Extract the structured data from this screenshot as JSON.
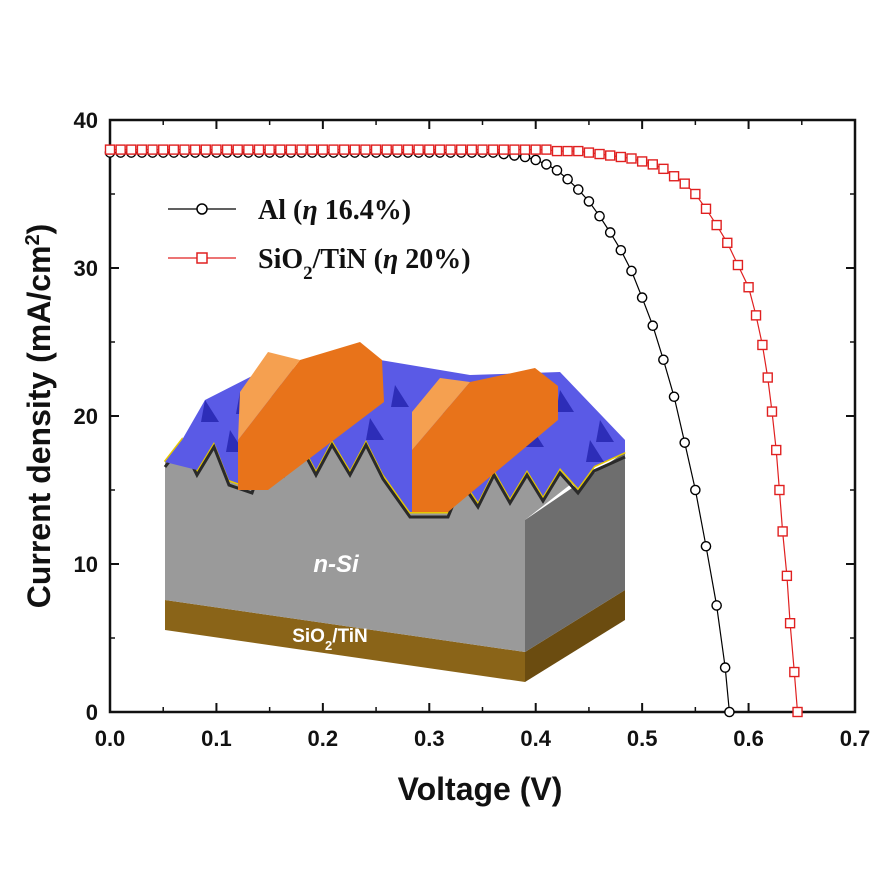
{
  "colors": {
    "series1": "#000000",
    "series2": "#e02020",
    "silicon_front": "#9a9a9a",
    "silicon_side": "#6e6e6e",
    "texture": "#5a5ae6",
    "contact": "#e8731a",
    "back_layer": "#8a6418",
    "passivation": "#e6c800"
  },
  "chart_data": {
    "type": "scatter",
    "xlabel": "Voltage (V)",
    "ylabel": "Current density (mA/cm²)",
    "xlim": [
      0.0,
      0.7
    ],
    "ylim": [
      0,
      40
    ],
    "xticks": [
      "0.0",
      "0.1",
      "0.2",
      "0.3",
      "0.4",
      "0.5",
      "0.6",
      "0.7"
    ],
    "yticks": [
      "0",
      "10",
      "20",
      "30",
      "40"
    ],
    "legend_position": "upper-left",
    "series": [
      {
        "name": "Al (η 16.4%)",
        "label_main": "Al (",
        "label_eta": "η",
        "label_value": " 16.4%)",
        "marker": "circle",
        "color": "#000000",
        "points": [
          [
            0.0,
            37.8
          ],
          [
            0.01,
            37.8
          ],
          [
            0.02,
            37.8
          ],
          [
            0.03,
            37.8
          ],
          [
            0.04,
            37.8
          ],
          [
            0.05,
            37.8
          ],
          [
            0.06,
            37.8
          ],
          [
            0.07,
            37.8
          ],
          [
            0.08,
            37.8
          ],
          [
            0.09,
            37.8
          ],
          [
            0.1,
            37.8
          ],
          [
            0.11,
            37.8
          ],
          [
            0.12,
            37.8
          ],
          [
            0.13,
            37.8
          ],
          [
            0.14,
            37.8
          ],
          [
            0.15,
            37.8
          ],
          [
            0.16,
            37.8
          ],
          [
            0.17,
            37.8
          ],
          [
            0.18,
            37.8
          ],
          [
            0.19,
            37.8
          ],
          [
            0.2,
            37.8
          ],
          [
            0.21,
            37.8
          ],
          [
            0.22,
            37.8
          ],
          [
            0.23,
            37.8
          ],
          [
            0.24,
            37.8
          ],
          [
            0.25,
            37.8
          ],
          [
            0.26,
            37.8
          ],
          [
            0.27,
            37.8
          ],
          [
            0.28,
            37.8
          ],
          [
            0.29,
            37.8
          ],
          [
            0.3,
            37.8
          ],
          [
            0.31,
            37.8
          ],
          [
            0.32,
            37.8
          ],
          [
            0.33,
            37.8
          ],
          [
            0.34,
            37.8
          ],
          [
            0.35,
            37.8
          ],
          [
            0.36,
            37.8
          ],
          [
            0.37,
            37.7
          ],
          [
            0.38,
            37.6
          ],
          [
            0.39,
            37.5
          ],
          [
            0.4,
            37.3
          ],
          [
            0.41,
            37.0
          ],
          [
            0.42,
            36.6
          ],
          [
            0.43,
            36.0
          ],
          [
            0.44,
            35.3
          ],
          [
            0.45,
            34.5
          ],
          [
            0.46,
            33.5
          ],
          [
            0.47,
            32.4
          ],
          [
            0.48,
            31.2
          ],
          [
            0.49,
            29.8
          ],
          [
            0.5,
            28.0
          ],
          [
            0.51,
            26.1
          ],
          [
            0.52,
            23.8
          ],
          [
            0.53,
            21.3
          ],
          [
            0.54,
            18.2
          ],
          [
            0.55,
            15.0
          ],
          [
            0.56,
            11.2
          ],
          [
            0.57,
            7.2
          ],
          [
            0.578,
            3.0
          ],
          [
            0.582,
            0.0
          ]
        ]
      },
      {
        "name": "SiO₂/TiN (η 20%)",
        "label_main": "SiO",
        "label_sub": "2",
        "label_rest": "/TiN (",
        "label_eta": "η",
        "label_value": " 20%)",
        "marker": "square",
        "color": "#e02020",
        "points": [
          [
            0.0,
            38.0
          ],
          [
            0.01,
            38.0
          ],
          [
            0.02,
            38.0
          ],
          [
            0.03,
            38.0
          ],
          [
            0.04,
            38.0
          ],
          [
            0.05,
            38.0
          ],
          [
            0.06,
            38.0
          ],
          [
            0.07,
            38.0
          ],
          [
            0.08,
            38.0
          ],
          [
            0.09,
            38.0
          ],
          [
            0.1,
            38.0
          ],
          [
            0.11,
            38.0
          ],
          [
            0.12,
            38.0
          ],
          [
            0.13,
            38.0
          ],
          [
            0.14,
            38.0
          ],
          [
            0.15,
            38.0
          ],
          [
            0.16,
            38.0
          ],
          [
            0.17,
            38.0
          ],
          [
            0.18,
            38.0
          ],
          [
            0.19,
            38.0
          ],
          [
            0.2,
            38.0
          ],
          [
            0.21,
            38.0
          ],
          [
            0.22,
            38.0
          ],
          [
            0.23,
            38.0
          ],
          [
            0.24,
            38.0
          ],
          [
            0.25,
            38.0
          ],
          [
            0.26,
            38.0
          ],
          [
            0.27,
            38.0
          ],
          [
            0.28,
            38.0
          ],
          [
            0.29,
            38.0
          ],
          [
            0.3,
            38.0
          ],
          [
            0.31,
            38.0
          ],
          [
            0.32,
            38.0
          ],
          [
            0.33,
            38.0
          ],
          [
            0.34,
            38.0
          ],
          [
            0.35,
            38.0
          ],
          [
            0.36,
            38.0
          ],
          [
            0.37,
            38.0
          ],
          [
            0.38,
            38.0
          ],
          [
            0.39,
            38.0
          ],
          [
            0.4,
            38.0
          ],
          [
            0.41,
            38.0
          ],
          [
            0.42,
            37.9
          ],
          [
            0.43,
            37.9
          ],
          [
            0.44,
            37.9
          ],
          [
            0.45,
            37.8
          ],
          [
            0.46,
            37.7
          ],
          [
            0.47,
            37.6
          ],
          [
            0.48,
            37.5
          ],
          [
            0.49,
            37.4
          ],
          [
            0.5,
            37.2
          ],
          [
            0.51,
            37.0
          ],
          [
            0.52,
            36.7
          ],
          [
            0.53,
            36.2
          ],
          [
            0.54,
            35.7
          ],
          [
            0.55,
            35.0
          ],
          [
            0.56,
            34.0
          ],
          [
            0.57,
            32.9
          ],
          [
            0.58,
            31.7
          ],
          [
            0.59,
            30.2
          ],
          [
            0.6,
            28.7
          ],
          [
            0.607,
            26.8
          ],
          [
            0.613,
            24.8
          ],
          [
            0.618,
            22.6
          ],
          [
            0.622,
            20.3
          ],
          [
            0.626,
            17.7
          ],
          [
            0.629,
            15.0
          ],
          [
            0.632,
            12.2
          ],
          [
            0.636,
            9.2
          ],
          [
            0.639,
            6.0
          ],
          [
            0.643,
            2.7
          ],
          [
            0.646,
            0.0
          ]
        ]
      }
    ]
  },
  "inset": {
    "bulk_label": "n-Si",
    "back_label_main": "SiO",
    "back_label_sub": "2",
    "back_label_rest": "/TiN"
  }
}
